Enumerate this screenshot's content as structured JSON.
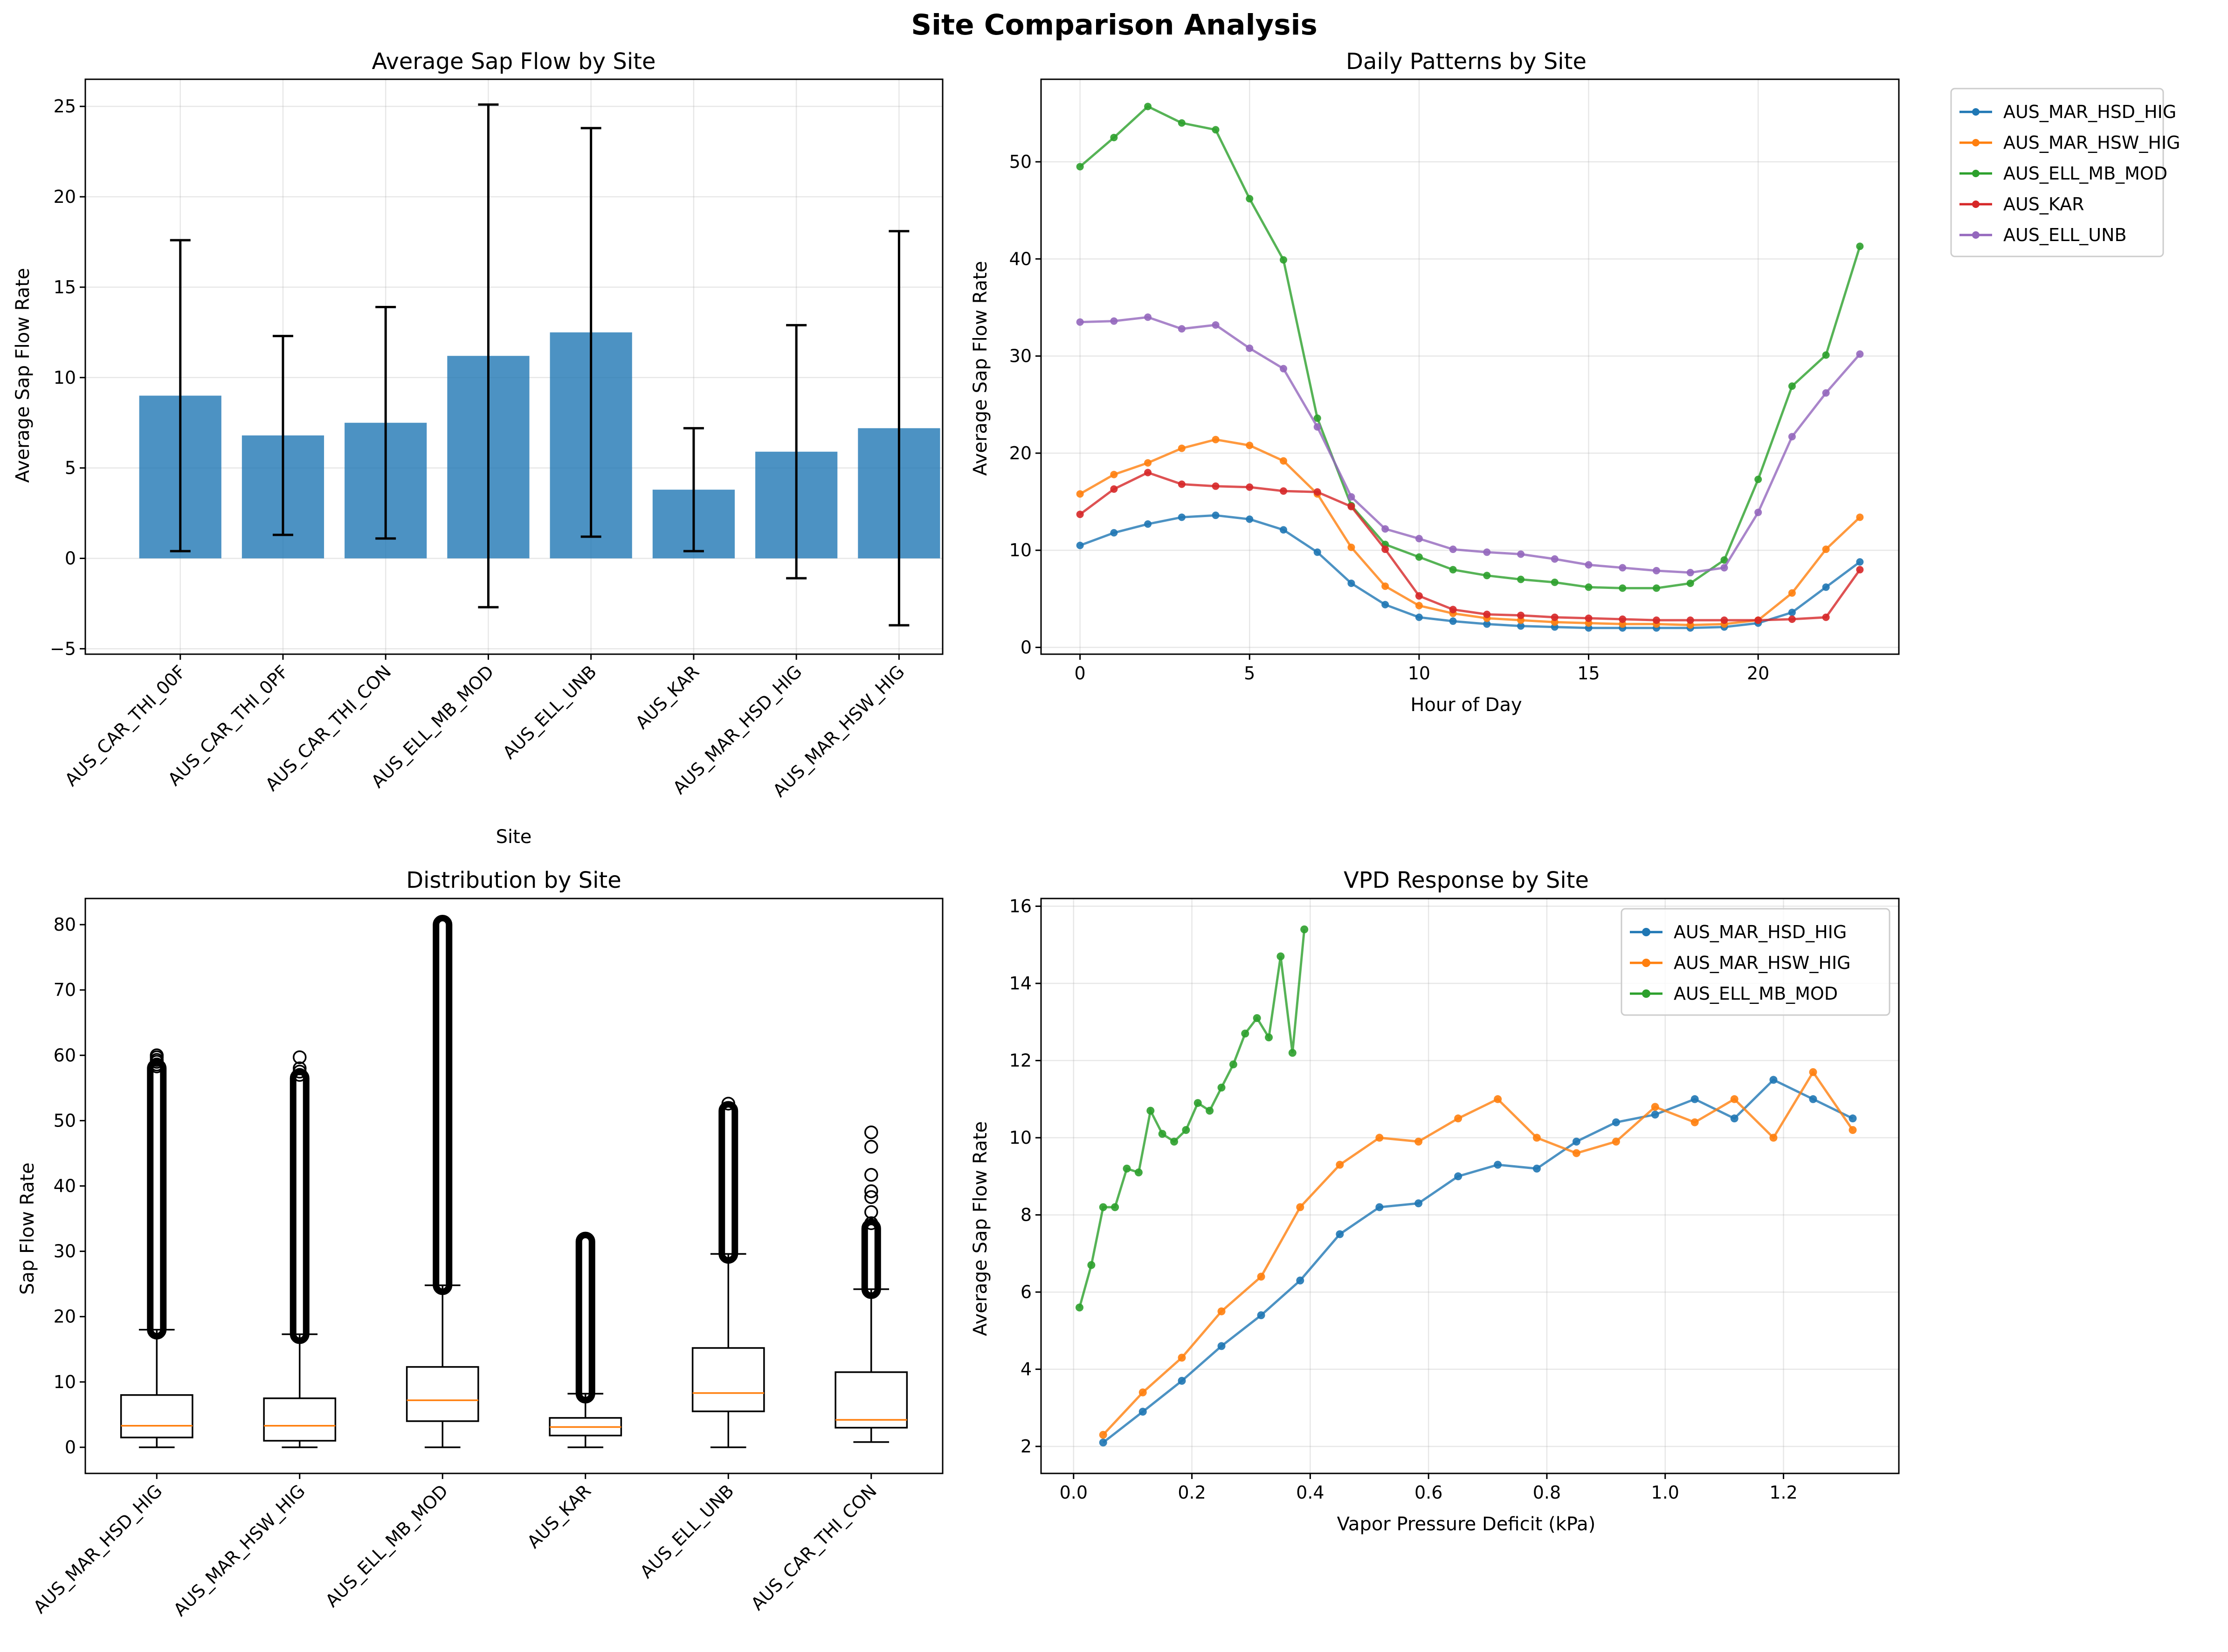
{
  "figure": {
    "title": "Site Comparison Analysis"
  },
  "colors": {
    "blue": "#1f77b4",
    "orange": "#ff7f0e",
    "green": "#2ca02c",
    "red": "#d62728",
    "purple": "#9467bd"
  },
  "chart_data": [
    {
      "type": "bar",
      "title": "Average Sap Flow by Site",
      "xlabel": "Site",
      "ylabel": "Average Sap Flow Rate",
      "ylim": [
        -5.3,
        26.5
      ],
      "yticks": [
        -5,
        0,
        5,
        10,
        15,
        20,
        25
      ],
      "categories": [
        "AUS_CAR_THI_00F",
        "AUS_CAR_THI_0PF",
        "AUS_CAR_THI_CON",
        "AUS_ELL_MB_MOD",
        "AUS_ELL_UNB",
        "AUS_KAR",
        "AUS_MAR_HSD_HIG",
        "AUS_MAR_HSW_HIG"
      ],
      "values": [
        9.0,
        6.8,
        7.5,
        11.2,
        12.5,
        3.8,
        5.9,
        7.2
      ],
      "error": [
        8.6,
        5.5,
        6.4,
        13.9,
        11.3,
        3.4,
        7.0,
        10.9
      ],
      "color": "#1f77b4",
      "grid": true
    },
    {
      "type": "line",
      "title": "Daily Patterns by Site",
      "xlabel": "Hour of Day",
      "ylabel": "Average Sap Flow Rate",
      "xlim": [
        -1.15,
        24.15
      ],
      "ylim": [
        -0.7,
        58.5
      ],
      "xticks": [
        0,
        5,
        10,
        15,
        20
      ],
      "yticks": [
        0,
        10,
        20,
        30,
        40,
        50
      ],
      "legend": "outside-upper-right",
      "grid": true,
      "x": [
        0,
        1,
        2,
        3,
        4,
        5,
        6,
        7,
        8,
        9,
        10,
        11,
        12,
        13,
        14,
        15,
        16,
        17,
        18,
        19,
        20,
        21,
        22,
        23
      ],
      "series": [
        {
          "name": "AUS_MAR_HSD_HIG",
          "color": "#1f77b4",
          "values": [
            10.5,
            11.8,
            12.7,
            13.4,
            13.6,
            13.2,
            12.1,
            9.8,
            6.6,
            4.4,
            3.1,
            2.7,
            2.4,
            2.2,
            2.1,
            2.0,
            2.0,
            2.0,
            2.0,
            2.1,
            2.5,
            3.6,
            6.2,
            8.8
          ]
        },
        {
          "name": "AUS_MAR_HSW_HIG",
          "color": "#ff7f0e",
          "values": [
            15.8,
            17.8,
            19.0,
            20.5,
            21.4,
            20.8,
            19.2,
            15.8,
            10.3,
            6.3,
            4.3,
            3.5,
            3.0,
            2.8,
            2.6,
            2.5,
            2.4,
            2.4,
            2.3,
            2.4,
            2.8,
            5.6,
            10.1,
            13.4
          ]
        },
        {
          "name": "AUS_ELL_MB_MOD",
          "color": "#2ca02c",
          "values": [
            49.5,
            52.5,
            55.7,
            54.0,
            53.3,
            46.2,
            39.9,
            23.6,
            14.6,
            10.6,
            9.3,
            8.0,
            7.4,
            7.0,
            6.7,
            6.2,
            6.1,
            6.1,
            6.6,
            9.0,
            17.3,
            26.9,
            30.1,
            41.3
          ]
        },
        {
          "name": "AUS_KAR",
          "color": "#d62728",
          "values": [
            13.7,
            16.3,
            18.0,
            16.8,
            16.6,
            16.5,
            16.1,
            16.0,
            14.5,
            10.1,
            5.3,
            3.9,
            3.4,
            3.3,
            3.1,
            3.0,
            2.9,
            2.8,
            2.8,
            2.8,
            2.8,
            2.9,
            3.1,
            8.0
          ]
        },
        {
          "name": "AUS_ELL_UNB",
          "color": "#9467bd",
          "values": [
            33.5,
            33.6,
            34.0,
            32.8,
            33.2,
            30.8,
            28.7,
            22.7,
            15.5,
            12.2,
            11.2,
            10.1,
            9.8,
            9.6,
            9.1,
            8.5,
            8.2,
            7.9,
            7.7,
            8.2,
            13.9,
            21.7,
            26.2,
            30.2
          ]
        }
      ]
    },
    {
      "type": "box",
      "title": "Distribution by Site",
      "ylabel": "Sap Flow Rate",
      "ylim": [
        -4,
        84
      ],
      "yticks": [
        0,
        10,
        20,
        30,
        40,
        50,
        60,
        70,
        80
      ],
      "categories": [
        "AUS_MAR_HSD_HIG",
        "AUS_MAR_HSW_HIG",
        "AUS_ELL_MB_MOD",
        "AUS_KAR",
        "AUS_ELL_UNB",
        "AUS_CAR_THI_CON"
      ],
      "boxes": [
        {
          "min": 0,
          "q1": 1.5,
          "median": 3.3,
          "q3": 8.0,
          "max": 18.0,
          "outlier_range": [
            18.0,
            58.0
          ],
          "sparse_outliers": [
            58.3,
            58.6,
            59.0,
            59.3,
            59.7,
            60.0
          ]
        },
        {
          "min": 0,
          "q1": 1.0,
          "median": 3.3,
          "q3": 7.5,
          "max": 17.3,
          "outlier_range": [
            17.3,
            56.5
          ],
          "sparse_outliers": [
            57.0,
            57.5,
            58.0,
            59.7
          ]
        },
        {
          "min": 0,
          "q1": 4.0,
          "median": 7.2,
          "q3": 12.3,
          "max": 24.8,
          "outlier_range": [
            24.8,
            80.0
          ],
          "sparse_outliers": []
        },
        {
          "min": 0,
          "q1": 1.8,
          "median": 3.1,
          "q3": 4.5,
          "max": 8.2,
          "outlier_range": [
            8.2,
            31.5
          ],
          "sparse_outliers": []
        },
        {
          "min": 0,
          "q1": 5.5,
          "median": 8.3,
          "q3": 15.2,
          "max": 29.6,
          "outlier_range": [
            29.6,
            51.5
          ],
          "sparse_outliers": [
            52.6
          ]
        },
        {
          "min": 0.8,
          "q1": 3.0,
          "median": 4.2,
          "q3": 11.5,
          "max": 24.2,
          "outlier_range": [
            24.2,
            33.5
          ],
          "sparse_outliers": [
            34.3,
            36.0,
            38.3,
            39.2,
            41.7,
            46.0,
            48.2
          ]
        }
      ],
      "box_color": "#000000",
      "median_color": "#ff7f0e",
      "grid": false
    },
    {
      "type": "line",
      "title": "VPD Response by Site",
      "xlabel": "Vapor Pressure Deficit (kPa)",
      "ylabel": "Average Sap Flow Rate",
      "xlim": [
        -0.055,
        1.395
      ],
      "ylim": [
        1.3,
        16.2
      ],
      "xticks": [
        0.0,
        0.2,
        0.4,
        0.6,
        0.8,
        1.0,
        1.2
      ],
      "yticks": [
        2,
        4,
        6,
        8,
        10,
        12,
        14,
        16
      ],
      "legend": "upper-right",
      "grid": true,
      "series": [
        {
          "name": "AUS_MAR_HSD_HIG",
          "color": "#1f77b4",
          "x": [
            0.05,
            0.117,
            0.183,
            0.25,
            0.317,
            0.383,
            0.45,
            0.517,
            0.583,
            0.65,
            0.717,
            0.783,
            0.85,
            0.917,
            0.983,
            1.05,
            1.117,
            1.183,
            1.25,
            1.317
          ],
          "y": [
            2.1,
            2.9,
            3.7,
            4.6,
            5.4,
            6.3,
            7.5,
            8.2,
            8.3,
            9.0,
            9.3,
            9.2,
            9.9,
            10.4,
            10.6,
            11.0,
            10.5,
            11.5,
            11.0,
            10.5
          ]
        },
        {
          "name": "AUS_MAR_HSW_HIG",
          "color": "#ff7f0e",
          "x": [
            0.05,
            0.117,
            0.183,
            0.25,
            0.317,
            0.383,
            0.45,
            0.517,
            0.583,
            0.65,
            0.717,
            0.783,
            0.85,
            0.917,
            0.983,
            1.05,
            1.117,
            1.183,
            1.25,
            1.317
          ],
          "y": [
            2.3,
            3.4,
            4.3,
            5.5,
            6.4,
            8.2,
            9.3,
            10.0,
            9.9,
            10.5,
            11.0,
            10.0,
            9.6,
            9.9,
            10.8,
            10.4,
            11.0,
            10.0,
            11.7,
            10.2
          ]
        },
        {
          "name": "AUS_ELL_MB_MOD",
          "color": "#2ca02c",
          "x": [
            0.01,
            0.03,
            0.05,
            0.07,
            0.09,
            0.11,
            0.13,
            0.15,
            0.17,
            0.19,
            0.21,
            0.23,
            0.25,
            0.27,
            0.29,
            0.31,
            0.33,
            0.35,
            0.37,
            0.39
          ],
          "y": [
            5.6,
            6.7,
            8.2,
            8.2,
            9.2,
            9.1,
            10.7,
            10.1,
            9.9,
            10.2,
            10.9,
            10.7,
            11.3,
            11.9,
            12.7,
            13.1,
            12.6,
            14.7,
            12.2,
            15.4
          ]
        }
      ]
    }
  ]
}
